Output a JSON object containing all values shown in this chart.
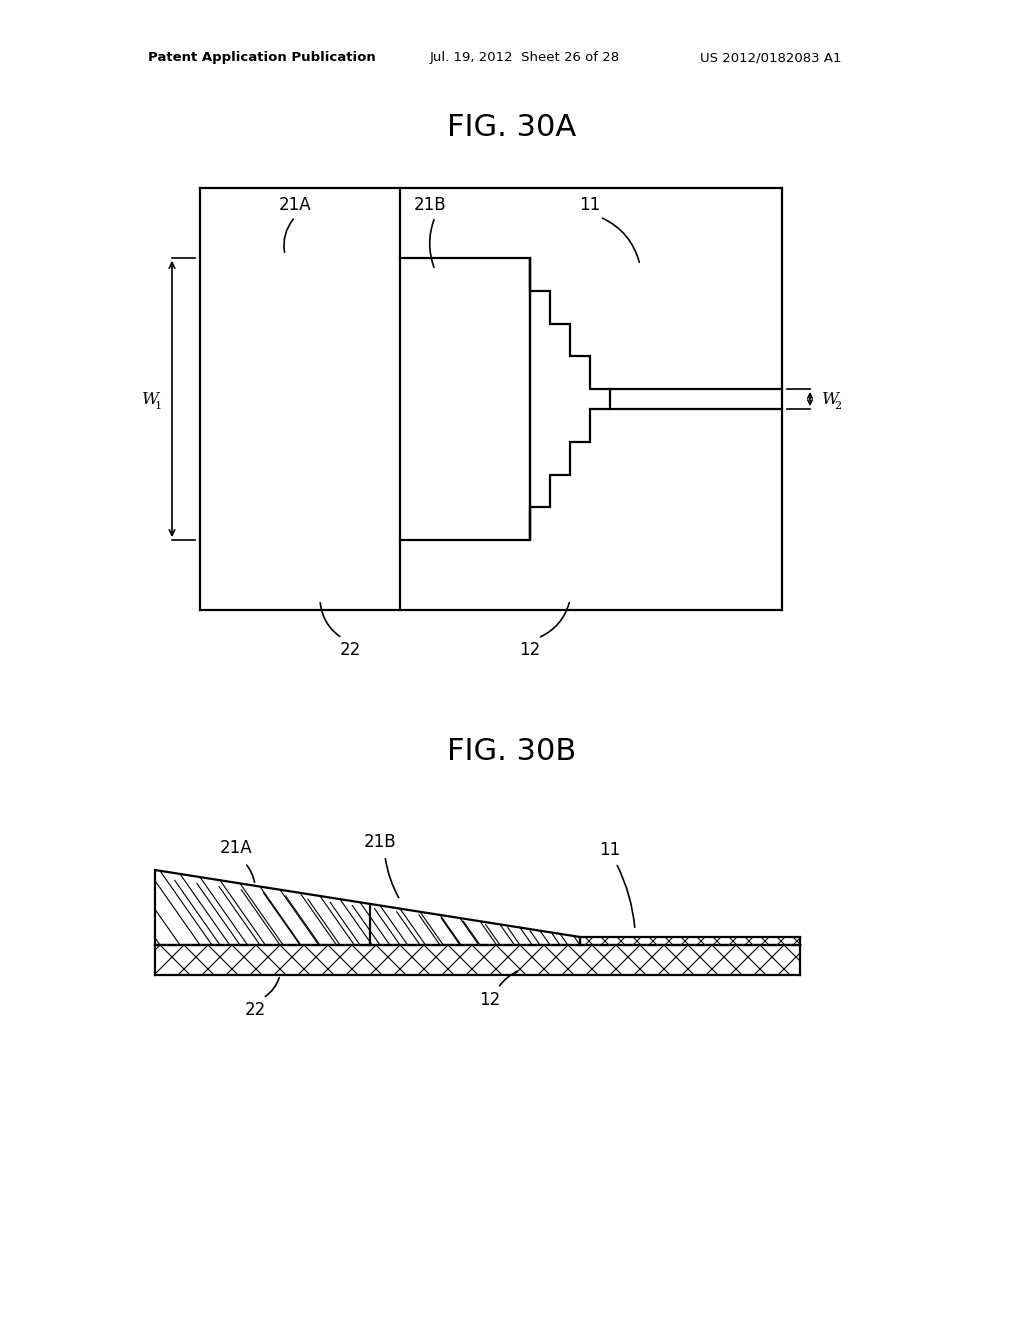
{
  "bg_color": "#ffffff",
  "header_left": "Patent Application Publication",
  "header_mid": "Jul. 19, 2012  Sheet 26 of 28",
  "header_right": "US 2012/0182083 A1",
  "fig30a_title": "FIG. 30A",
  "fig30b_title": "FIG. 30B",
  "label_21A": "21A",
  "label_21B": "21B",
  "label_11": "11",
  "label_22": "22",
  "label_12": "12",
  "label_W1": "W",
  "label_W2": "W",
  "lw": 1.6,
  "black": "#000000"
}
